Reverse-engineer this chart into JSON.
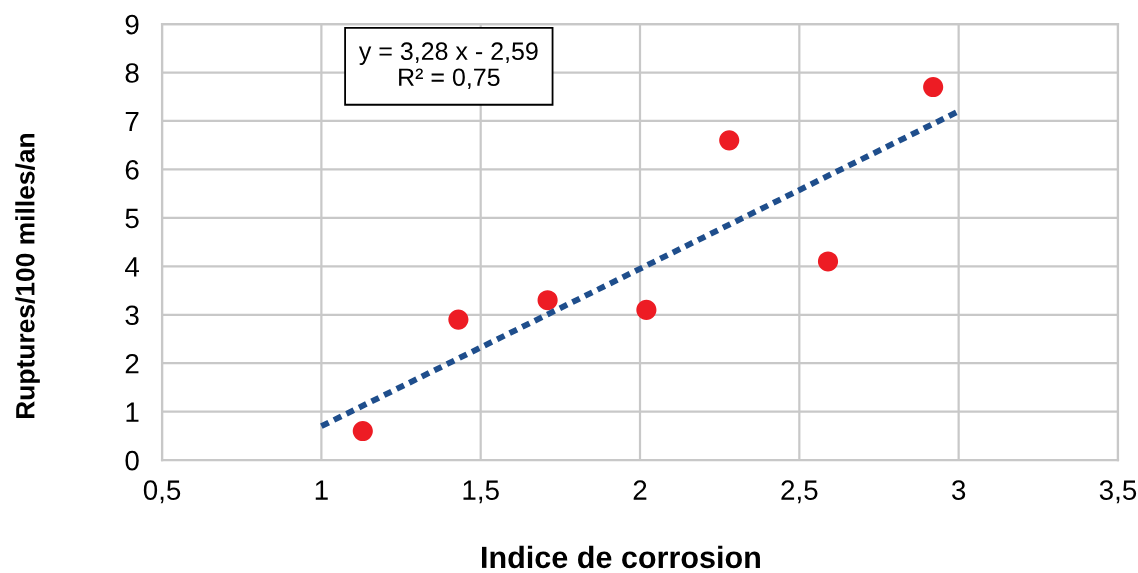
{
  "chart_data": {
    "type": "scatter",
    "xlabel": "Indice de corrosion",
    "ylabel": "Ruptures/100 milles/an",
    "annotations": [
      "y = 3,28 x - 2,59\nR² = 0,75"
    ],
    "series": [
      {
        "color": "#ed1c24",
        "marker": "circle",
        "x": [
          1.13,
          1.43,
          1.71,
          2.02,
          2.28,
          2.59,
          2.92
        ],
        "values": [
          0.6,
          2.9,
          3.3,
          3.1,
          6.6,
          4.1,
          7.7
        ]
      },
      {
        "type": "line",
        "color": "#1f4e8c",
        "marker": "none",
        "line_style": "dotted",
        "x": [
          1,
          3
        ],
        "values": [
          0.7,
          7.2
        ]
      }
    ],
    "xlim": [
      0.5,
      3.5
    ],
    "ylim": [
      0,
      9
    ],
    "xticks": [
      {
        "value": 0.5,
        "label": "0,5"
      },
      1,
      {
        "value": 1.5,
        "label": "1,5"
      },
      2,
      {
        "value": 2.5,
        "label": "2,5"
      },
      3,
      {
        "value": 3.5,
        "label": "3,5"
      }
    ],
    "yticks": [
      0,
      1,
      2,
      3,
      4,
      5,
      6,
      7,
      8,
      9
    ],
    "grid": true
  }
}
